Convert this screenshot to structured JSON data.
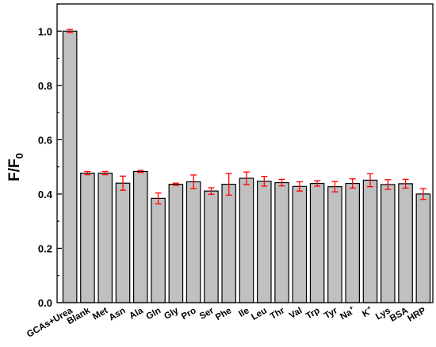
{
  "chart_data": {
    "type": "bar",
    "xlabel": "",
    "ylabel": {
      "main": "F/F",
      "sub": "0"
    },
    "ylim": [
      0.0,
      1.1
    ],
    "yticks": [
      "0.0",
      "0.2",
      "0.4",
      "0.6",
      "0.8",
      "1.0"
    ],
    "categories": [
      {
        "main": "GCAs+Urea",
        "sup": ""
      },
      {
        "main": "Blank",
        "sup": ""
      },
      {
        "main": "Met",
        "sup": ""
      },
      {
        "main": "Asn",
        "sup": ""
      },
      {
        "main": "Ala",
        "sup": ""
      },
      {
        "main": "Gln",
        "sup": ""
      },
      {
        "main": "Gly",
        "sup": ""
      },
      {
        "main": "Pro",
        "sup": ""
      },
      {
        "main": "Ser",
        "sup": ""
      },
      {
        "main": "Phe",
        "sup": ""
      },
      {
        "main": "Ile",
        "sup": ""
      },
      {
        "main": "Leu",
        "sup": ""
      },
      {
        "main": "Thr",
        "sup": ""
      },
      {
        "main": "Val",
        "sup": ""
      },
      {
        "main": "Trp",
        "sup": ""
      },
      {
        "main": "Tyr",
        "sup": ""
      },
      {
        "main": "Na",
        "sup": "+"
      },
      {
        "main": "K",
        "sup": "+"
      },
      {
        "main": "Lys",
        "sup": ""
      },
      {
        "main": "BSA",
        "sup": ""
      },
      {
        "main": "HRP",
        "sup": ""
      }
    ],
    "values": [
      1.0,
      0.477,
      0.477,
      0.44,
      0.483,
      0.384,
      0.436,
      0.445,
      0.411,
      0.436,
      0.458,
      0.447,
      0.442,
      0.428,
      0.439,
      0.427,
      0.439,
      0.451,
      0.435,
      0.438,
      0.4
    ],
    "errors": [
      0.006,
      0.006,
      0.006,
      0.026,
      0.004,
      0.02,
      0.004,
      0.025,
      0.012,
      0.04,
      0.023,
      0.018,
      0.012,
      0.017,
      0.01,
      0.019,
      0.017,
      0.024,
      0.018,
      0.016,
      0.02
    ],
    "grid": false,
    "legend": "none",
    "colors": {
      "bar_fill": "#c0c0c0",
      "bar_stroke": "#000000",
      "error_bar": "#ff0000",
      "axis": "#000000"
    }
  }
}
